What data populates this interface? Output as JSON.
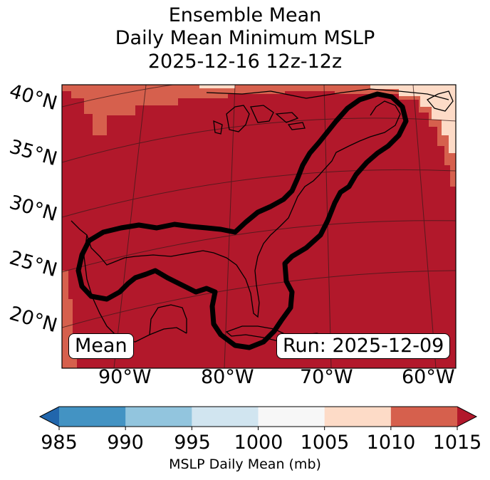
{
  "title": {
    "line1": "Ensemble Mean",
    "line2": "Daily Mean Minimum MSLP",
    "line3": "2025-12-16 12z-12z"
  },
  "map": {
    "lat_labels": [
      "40°N",
      "35°N",
      "30°N",
      "25°N",
      "20°N"
    ],
    "lon_labels": [
      "90°W",
      "80°W",
      "70°W",
      "60°W"
    ],
    "mean_label": "Mean",
    "run_label": "Run: 2025-12-09",
    "fill_colors": {
      "ge1015": "#b2182b",
      "1010_1015": "#d6604d",
      "1005_1010": "#fddbc7"
    }
  },
  "colorbar": {
    "ticks": [
      "985",
      "990",
      "995",
      "1000",
      "1005",
      "1010",
      "1015"
    ],
    "label": "MSLP Daily Mean (mb)",
    "colors": [
      "#2166ac",
      "#4393c3",
      "#92c5de",
      "#d1e5f0",
      "#f7f7f7",
      "#fddbc7",
      "#d6604d",
      "#b2182b"
    ]
  }
}
